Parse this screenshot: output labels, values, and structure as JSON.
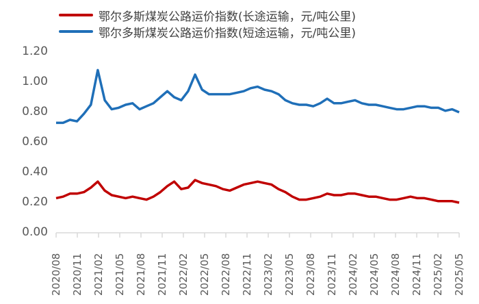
{
  "chart_data": {
    "type": "line",
    "title": "",
    "xlabel": "",
    "ylabel": "",
    "ylim": [
      0,
      1.2
    ],
    "yticks": [
      "0.00",
      "0.20",
      "0.40",
      "0.60",
      "0.80",
      "1.00",
      "1.20"
    ],
    "xtick_labels": [
      "2020/08",
      "2020/11",
      "2021/02",
      "2021/05",
      "2021/08",
      "2021/11",
      "2022/02",
      "2022/05",
      "2022/08",
      "2022/11",
      "2023/02",
      "2023/05",
      "2023/08",
      "2023/11",
      "2024/02",
      "2024/05",
      "2024/08",
      "2024/11",
      "2025/02",
      "2025/05"
    ],
    "grid": false,
    "legend_position": "top",
    "x": [
      "2020/08",
      "2020/09",
      "2020/10",
      "2020/11",
      "2020/12",
      "2021/01a",
      "2021/01b",
      "2021/02",
      "2021/03",
      "2021/04",
      "2021/05",
      "2021/06",
      "2021/07",
      "2021/08",
      "2021/09",
      "2021/10",
      "2021/11",
      "2021/12",
      "2022/01",
      "2022/02",
      "2022/03",
      "2022/04",
      "2022/05",
      "2022/06",
      "2022/07",
      "2022/08",
      "2022/09",
      "2022/10",
      "2022/11",
      "2022/12",
      "2023/01",
      "2023/02",
      "2023/03",
      "2023/04",
      "2023/05",
      "2023/06",
      "2023/07",
      "2023/08",
      "2023/09",
      "2023/10",
      "2023/11",
      "2023/12",
      "2024/01",
      "2024/02",
      "2024/03",
      "2024/04",
      "2024/05",
      "2024/06",
      "2024/07",
      "2024/08",
      "2024/09",
      "2024/10",
      "2024/11",
      "2024/12",
      "2025/01",
      "2025/02",
      "2025/03",
      "2025/04",
      "2025/05"
    ],
    "series": [
      {
        "name": "鄂尔多斯煤炭公路运价指数(长途运输，元/吨公里)",
        "color": "#C00000",
        "values": [
          0.23,
          0.24,
          0.26,
          0.26,
          0.27,
          0.3,
          0.34,
          0.28,
          0.25,
          0.24,
          0.23,
          0.24,
          0.23,
          0.22,
          0.24,
          0.27,
          0.31,
          0.34,
          0.29,
          0.3,
          0.35,
          0.33,
          0.32,
          0.31,
          0.29,
          0.28,
          0.3,
          0.32,
          0.33,
          0.34,
          0.33,
          0.32,
          0.29,
          0.27,
          0.24,
          0.22,
          0.22,
          0.23,
          0.24,
          0.26,
          0.25,
          0.25,
          0.26,
          0.26,
          0.25,
          0.24,
          0.24,
          0.23,
          0.22,
          0.22,
          0.23,
          0.24,
          0.23,
          0.23,
          0.22,
          0.21,
          0.21,
          0.21,
          0.2
        ]
      },
      {
        "name": "鄂尔多斯煤炭公路运价指数(短途运输，元/吨公里)",
        "color": "#1F6FB8",
        "values": [
          0.73,
          0.73,
          0.75,
          0.74,
          0.79,
          0.85,
          1.08,
          0.88,
          0.82,
          0.83,
          0.85,
          0.86,
          0.82,
          0.84,
          0.86,
          0.9,
          0.94,
          0.9,
          0.88,
          0.94,
          1.05,
          0.95,
          0.92,
          0.92,
          0.92,
          0.92,
          0.93,
          0.94,
          0.96,
          0.97,
          0.95,
          0.94,
          0.92,
          0.88,
          0.86,
          0.85,
          0.85,
          0.84,
          0.86,
          0.89,
          0.86,
          0.86,
          0.87,
          0.88,
          0.86,
          0.85,
          0.85,
          0.84,
          0.83,
          0.82,
          0.82,
          0.83,
          0.84,
          0.84,
          0.83,
          0.83,
          0.81,
          0.82,
          0.8
        ]
      }
    ]
  },
  "legend": {
    "items": [
      {
        "label": "鄂尔多斯煤炭公路运价指数(长途运输，元/吨公里)",
        "color": "#C00000"
      },
      {
        "label": "鄂尔多斯煤炭公路运价指数(短途运输，元/吨公里)",
        "color": "#1F6FB8"
      }
    ]
  }
}
